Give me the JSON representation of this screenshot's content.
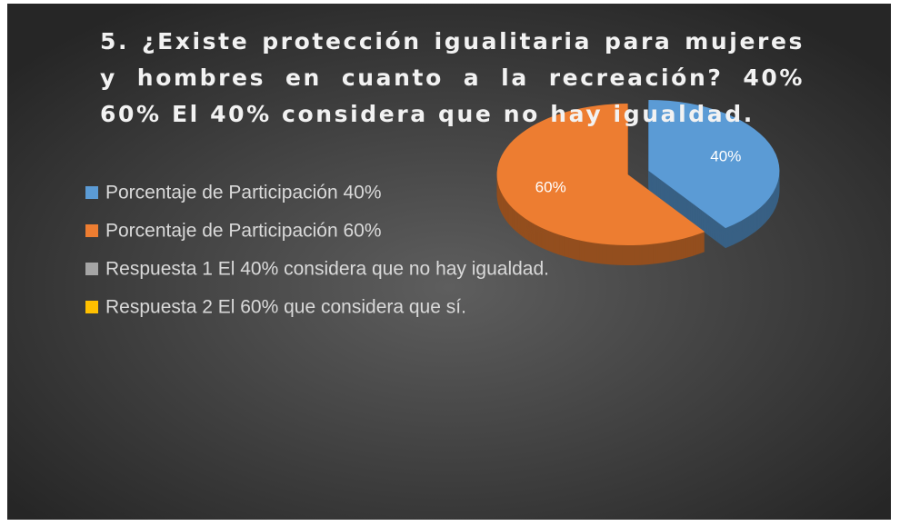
{
  "chart_data": {
    "type": "pie",
    "title": "5.   ¿Existe protección igualitaria para mujeres y hombres en cuanto a la recreación? 40% 60% El 40% considera que no hay igualdad.",
    "categories": [
      "Porcentaje de Participación 40%",
      "Porcentaje de Participación 60%",
      "Respuesta 1 El 40% considera que no hay igualdad.",
      "Respuesta 2 El 60% que considera que sí."
    ],
    "values": [
      40,
      60,
      0,
      0
    ],
    "value_labels": [
      "40%",
      "60%",
      null,
      null
    ],
    "colors": [
      "#5b9bd5",
      "#ed7d31",
      "#a5a5a5",
      "#ffc000"
    ],
    "legend": "left"
  }
}
